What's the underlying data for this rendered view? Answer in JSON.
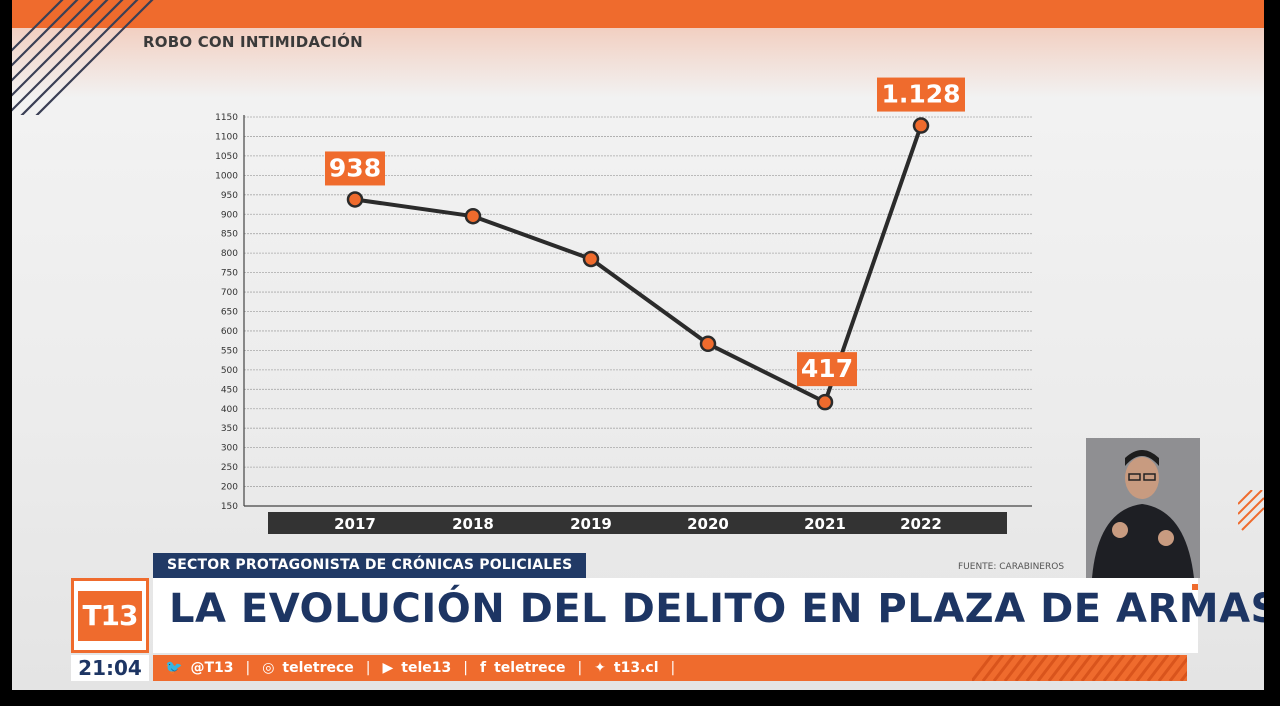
{
  "section_title": "ROBO CON INTIMIDACIÓN",
  "chart_data": {
    "type": "line",
    "title": "ROBO CON INTIMIDACIÓN",
    "categories": [
      "2017",
      "2018",
      "2019",
      "2020",
      "2021",
      "2022"
    ],
    "values": [
      938,
      895,
      785,
      567,
      417,
      1128
    ],
    "labeled_points": [
      {
        "index": 0,
        "label": "938"
      },
      {
        "index": 4,
        "label": "417"
      },
      {
        "index": 5,
        "label": "1.128"
      }
    ],
    "yticks": [
      150,
      200,
      250,
      300,
      350,
      400,
      450,
      500,
      550,
      600,
      650,
      700,
      750,
      800,
      850,
      900,
      950,
      1000,
      1050,
      1100,
      1150
    ],
    "ylim": [
      150,
      1150
    ],
    "grid": true,
    "colors": {
      "line": "#2b2b2b",
      "marker": "#ef6b2d",
      "label_bg": "#ef6b2d",
      "axis_band": "#333333"
    }
  },
  "source": "FUENTE: CARABINEROS",
  "subtitle_tag": "SECTOR PROTAGONISTA DE CRÓNICAS POLICIALES",
  "headline": "LA EVOLUCIÓN DEL DELITO EN PLAZA DE ARMAS",
  "logo_text": "T13",
  "clock": "21:04",
  "social": [
    {
      "icon": "twitter-icon",
      "glyph": "🐦",
      "label": "@T13"
    },
    {
      "icon": "instagram-icon",
      "glyph": "◎",
      "label": "teletrece"
    },
    {
      "icon": "youtube-icon",
      "glyph": "▶",
      "label": "tele13"
    },
    {
      "icon": "facebook-icon",
      "glyph": "f",
      "label": "teletrece"
    },
    {
      "icon": "web-icon",
      "glyph": "✦",
      "label": "t13.cl"
    }
  ],
  "colors": {
    "brand_orange": "#ef6b2d",
    "brand_navy": "#1d3563",
    "tag_bg": "#213a66"
  }
}
